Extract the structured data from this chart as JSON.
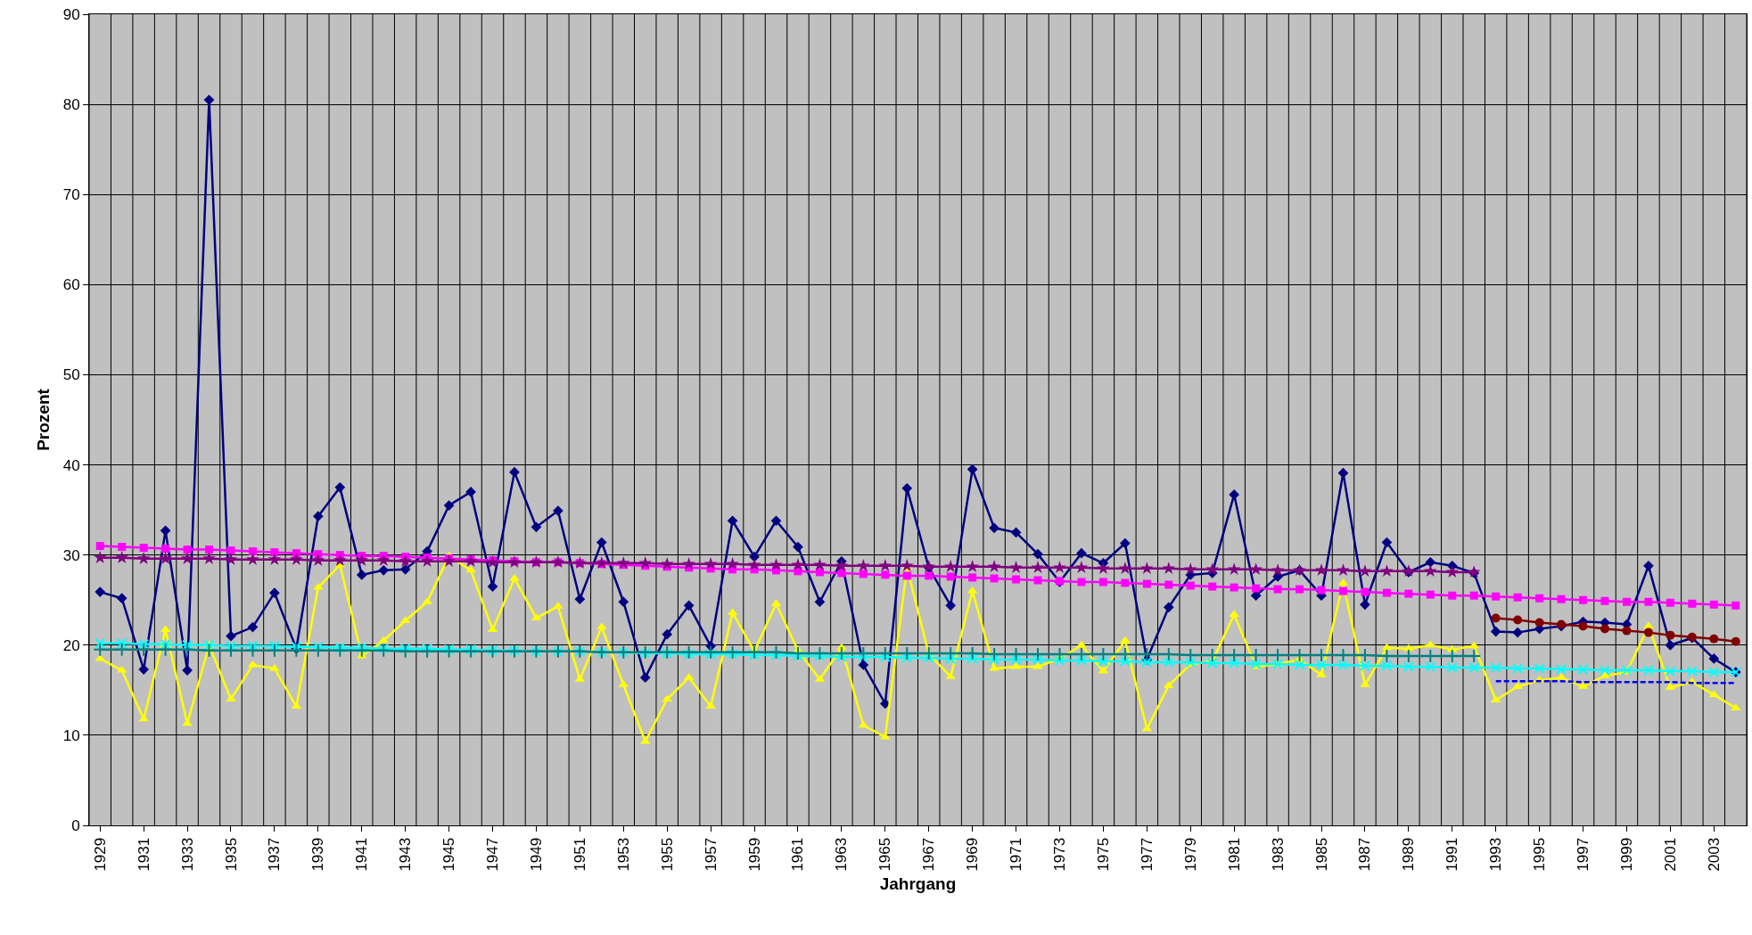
{
  "chart_data": {
    "type": "line",
    "xlabel": "Jahrgang",
    "ylabel": "Prozent",
    "categories": [
      "1929",
      null,
      "1931",
      null,
      "1933",
      null,
      "1935",
      null,
      "1937",
      null,
      "1939",
      null,
      "1941",
      null,
      "1943",
      null,
      "1945",
      null,
      "1947",
      null,
      "1949",
      null,
      "1951",
      null,
      "1953",
      null,
      "1955",
      null,
      "1957",
      null,
      "1959",
      null,
      "1961",
      null,
      "1963",
      null,
      "1965",
      null,
      "1967",
      null,
      "1969",
      null,
      "1971",
      null,
      "1973",
      null,
      "1975",
      null,
      "1977",
      null,
      "1979",
      null,
      "1981",
      null,
      "1983",
      null,
      "1985",
      null,
      "1987",
      null,
      "1989",
      null,
      "1991",
      null,
      "1993",
      null,
      "1995",
      null,
      "1997",
      null,
      "1999",
      null,
      "2001",
      null,
      "2003",
      null
    ],
    "ylim": [
      0,
      90
    ],
    "yticks": [
      0,
      10,
      20,
      30,
      40,
      50,
      60,
      70,
      80,
      90
    ],
    "grid": true,
    "line_style": "solid",
    "series": [
      {
        "color": "#000080",
        "marker": "diamond",
        "values": [
          25.9,
          25.2,
          17.3,
          32.7,
          17.2,
          80.5,
          21.0,
          22.0,
          25.8,
          19.6,
          34.3,
          37.5,
          27.8,
          28.3,
          28.4,
          30.4,
          35.5,
          37.0,
          26.5,
          39.2,
          33.1,
          34.9,
          25.1,
          31.4,
          24.8,
          16.4,
          21.2,
          24.4,
          19.9,
          33.8,
          29.8,
          33.8,
          30.9,
          24.8,
          29.3,
          17.8,
          13.5,
          37.4,
          28.6,
          24.4,
          39.5,
          33.0,
          32.5,
          30.1,
          27.0,
          30.2,
          29.1,
          31.3,
          18.4,
          24.2,
          27.8,
          28.0,
          36.7,
          25.5,
          27.6,
          28.3,
          25.5,
          39.1,
          24.5,
          31.4,
          28.1,
          29.2,
          28.8,
          28.0,
          21.5,
          21.4,
          21.8,
          22.1,
          22.6,
          22.5,
          22.3,
          28.8,
          20.0,
          20.8,
          18.5,
          17.0
        ]
      },
      {
        "color": "#ffff00",
        "marker": "triangle",
        "values": [
          18.5,
          17.2,
          11.8,
          21.7,
          11.3,
          20.0,
          14.0,
          17.8,
          17.4,
          13.2,
          26.4,
          28.9,
          18.8,
          20.5,
          22.7,
          24.8,
          29.9,
          28.3,
          21.7,
          27.4,
          23.0,
          24.3,
          16.2,
          22.0,
          15.6,
          9.3,
          14.0,
          16.4,
          13.2,
          23.6,
          19.3,
          24.6,
          19.4,
          16.2,
          19.7,
          11.1,
          9.8,
          28.6,
          19.0,
          16.5,
          26.0,
          17.4,
          17.6,
          17.6,
          18.5,
          20.0,
          17.1,
          20.5,
          10.7,
          15.5,
          17.9,
          18.2,
          23.4,
          17.6,
          17.9,
          18.4,
          16.7,
          26.9,
          15.6,
          19.7,
          19.6,
          20.0,
          19.5,
          19.9,
          13.9,
          15.4,
          16.1,
          16.4,
          15.4,
          16.6,
          17.0,
          22.1,
          15.3,
          15.9,
          14.5,
          13.0
        ]
      },
      {
        "color": "#ff00ff",
        "marker": "square",
        "values": [
          31.0,
          30.9,
          30.8,
          30.7,
          30.6,
          30.6,
          30.5,
          30.4,
          30.3,
          30.2,
          30.1,
          30.0,
          29.9,
          29.9,
          29.8,
          29.7,
          29.6,
          29.5,
          29.4,
          29.3,
          29.2,
          29.2,
          29.1,
          29.0,
          28.9,
          28.8,
          28.7,
          28.6,
          28.5,
          28.4,
          28.4,
          28.3,
          28.2,
          28.1,
          28.0,
          27.9,
          27.8,
          27.7,
          27.7,
          27.6,
          27.5,
          27.4,
          27.3,
          27.2,
          27.1,
          27.0,
          27.0,
          26.9,
          26.8,
          26.7,
          26.6,
          26.5,
          26.4,
          26.3,
          26.2,
          26.2,
          26.1,
          26.0,
          25.9,
          25.8,
          25.7,
          25.6,
          25.5,
          25.5,
          25.4,
          25.3,
          25.2,
          25.1,
          25.0,
          24.9,
          24.8,
          24.8,
          24.7,
          24.6,
          24.5,
          24.4
        ]
      },
      {
        "color": "#800080",
        "marker": "star",
        "values": [
          29.7,
          29.7,
          29.6,
          29.6,
          29.6,
          29.6,
          29.5,
          29.5,
          29.5,
          29.5,
          29.4,
          29.4,
          29.4,
          29.4,
          29.3,
          29.3,
          29.3,
          29.3,
          29.2,
          29.2,
          29.2,
          29.2,
          29.1,
          29.1,
          29.1,
          29.1,
          29.0,
          29.0,
          29.0,
          29.0,
          28.9,
          28.9,
          28.9,
          28.9,
          28.8,
          28.8,
          28.8,
          28.8,
          28.7,
          28.7,
          28.7,
          28.7,
          28.6,
          28.6,
          28.6,
          28.6,
          28.5,
          28.5,
          28.5,
          28.5,
          28.4,
          28.4,
          28.4,
          28.4,
          28.3,
          28.3,
          28.3,
          28.3,
          28.2,
          28.2,
          28.2,
          28.2,
          28.1,
          28.1,
          null,
          null,
          null,
          null,
          null,
          null,
          null,
          null,
          null,
          null,
          null,
          null
        ]
      },
      {
        "color": "#00ffff",
        "marker": "x",
        "values": [
          20.2,
          20.2,
          20.1,
          20.1,
          20.0,
          20.0,
          19.9,
          19.9,
          19.9,
          19.8,
          19.8,
          19.7,
          19.7,
          19.6,
          19.6,
          19.6,
          19.5,
          19.5,
          19.4,
          19.4,
          19.3,
          19.3,
          19.3,
          19.2,
          19.2,
          19.1,
          19.1,
          19.0,
          19.0,
          19.0,
          18.9,
          18.9,
          18.8,
          18.8,
          18.7,
          18.7,
          18.7,
          18.6,
          18.6,
          18.5,
          18.5,
          18.4,
          18.4,
          18.4,
          18.3,
          18.3,
          18.2,
          18.2,
          18.1,
          18.1,
          18.1,
          18.0,
          18.0,
          17.9,
          17.9,
          17.8,
          17.8,
          17.8,
          17.7,
          17.7,
          17.6,
          17.6,
          17.5,
          17.5,
          17.5,
          17.4,
          17.4,
          17.3,
          17.3,
          17.2,
          17.2,
          17.2,
          17.1,
          17.1,
          17.0,
          17.0
        ]
      },
      {
        "color": "#008080",
        "marker": "cross",
        "values": [
          19.5,
          19.5,
          19.5,
          19.5,
          19.5,
          19.4,
          19.4,
          19.4,
          19.4,
          19.4,
          19.4,
          19.4,
          19.4,
          19.4,
          19.3,
          19.3,
          19.3,
          19.3,
          19.3,
          19.3,
          19.3,
          19.3,
          19.3,
          19.2,
          19.2,
          19.2,
          19.2,
          19.2,
          19.2,
          19.2,
          19.2,
          19.2,
          19.1,
          19.1,
          19.1,
          19.1,
          19.1,
          19.1,
          19.1,
          19.1,
          19.1,
          19.0,
          19.0,
          19.0,
          19.0,
          19.0,
          19.0,
          19.0,
          19.0,
          19.0,
          18.9,
          18.9,
          18.9,
          18.9,
          18.9,
          18.9,
          18.9,
          18.9,
          18.9,
          18.8,
          18.8,
          18.8,
          18.8,
          18.8,
          null,
          null,
          null,
          null,
          null,
          null,
          null,
          null,
          null,
          null,
          null,
          null
        ]
      },
      {
        "color": "#800000",
        "marker": "circle",
        "values": [
          null,
          null,
          null,
          null,
          null,
          null,
          null,
          null,
          null,
          null,
          null,
          null,
          null,
          null,
          null,
          null,
          null,
          null,
          null,
          null,
          null,
          null,
          null,
          null,
          null,
          null,
          null,
          null,
          null,
          null,
          null,
          null,
          null,
          null,
          null,
          null,
          null,
          null,
          null,
          null,
          null,
          null,
          null,
          null,
          null,
          null,
          null,
          null,
          null,
          null,
          null,
          null,
          null,
          null,
          null,
          null,
          null,
          null,
          null,
          null,
          null,
          null,
          null,
          null,
          23.0,
          22.8,
          22.5,
          22.3,
          22.1,
          21.8,
          21.6,
          21.4,
          21.1,
          20.9,
          20.7,
          20.4
        ]
      },
      {
        "color": "#0000ff",
        "marker": "none",
        "line_style": "dashed",
        "values": [
          null,
          null,
          null,
          null,
          null,
          null,
          null,
          null,
          null,
          null,
          null,
          null,
          null,
          null,
          null,
          null,
          null,
          null,
          null,
          null,
          null,
          null,
          null,
          null,
          null,
          null,
          null,
          null,
          null,
          null,
          null,
          null,
          null,
          null,
          null,
          null,
          null,
          null,
          null,
          null,
          null,
          null,
          null,
          null,
          null,
          null,
          null,
          null,
          null,
          null,
          null,
          null,
          null,
          null,
          null,
          null,
          null,
          null,
          null,
          null,
          null,
          null,
          null,
          null,
          16.0,
          16.0,
          16.0,
          16.0,
          15.9,
          15.9,
          15.9,
          15.9,
          15.9,
          15.8,
          15.8,
          15.8
        ]
      }
    ]
  }
}
